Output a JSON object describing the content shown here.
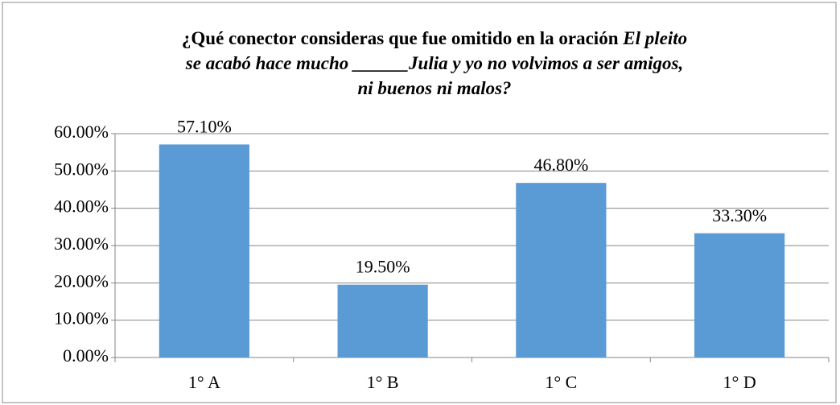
{
  "chart_data": {
    "type": "bar",
    "title": [
      [
        {
          "text": "¿Qué conector consideras que fue omitido en la oración ",
          "italic": false
        },
        {
          "text": "El pleito",
          "italic": true
        }
      ],
      [
        {
          "text": "se acabó hace mucho ______Julia y yo no volvimos a ser amigos,",
          "italic": true
        }
      ],
      [
        {
          "text": "ni buenos ni malos?",
          "italic": true
        }
      ]
    ],
    "categories": [
      "1° A",
      "1° B",
      "1° C",
      "1° D"
    ],
    "values": [
      57.1,
      19.5,
      46.8,
      33.3
    ],
    "value_labels": [
      "57.10%",
      "19.50%",
      "46.80%",
      "33.30%"
    ],
    "color": "#5b9bd5",
    "ylim": [
      0,
      60
    ],
    "yticks": [
      {
        "value": 0,
        "label": "0.00%"
      },
      {
        "value": 10,
        "label": "10.00%"
      },
      {
        "value": 20,
        "label": "20.00%"
      },
      {
        "value": 30,
        "label": "30.00%"
      },
      {
        "value": 40,
        "label": "40.00%"
      },
      {
        "value": 50,
        "label": "50.00%"
      },
      {
        "value": 60,
        "label": "60.00%"
      }
    ],
    "grid": true
  }
}
